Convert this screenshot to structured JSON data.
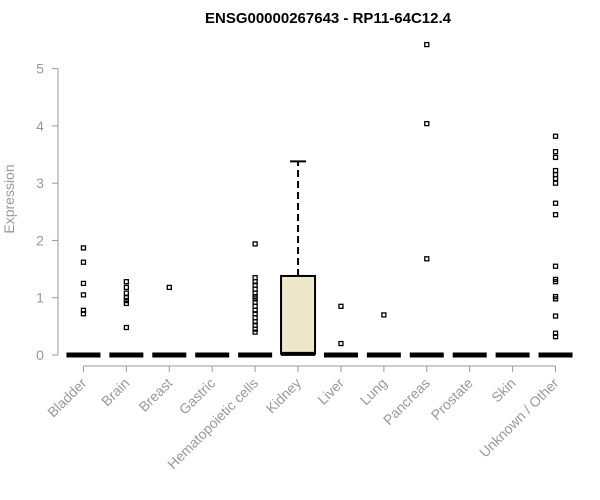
{
  "chart_data": {
    "type": "box",
    "title": "ENSG00000267643 - RP11-64C12.4",
    "xlabel": "",
    "ylabel": "Expression",
    "ylim": [
      0,
      5.5
    ],
    "yticks": [
      0,
      1,
      2,
      3,
      4,
      5
    ],
    "grid": false,
    "colors": {
      "box_fill": "#ede7cc",
      "box_stroke": "#000000",
      "axis": "#999999",
      "text": "#999999",
      "title": "#000000"
    },
    "categories": [
      "Bladder",
      "Brain",
      "Breast",
      "Gastric",
      "Hematopoietic cells",
      "Kidney",
      "Liver",
      "Lung",
      "Pancreas",
      "Prostate",
      "Skin",
      "Unknown / Other"
    ],
    "boxes": [
      {
        "category": "Bladder",
        "min": 0,
        "q1": 0,
        "median": 0,
        "q3": 0,
        "max": 0,
        "outliers": [
          1.87,
          1.62,
          1.25,
          1.05,
          0.78,
          0.72
        ]
      },
      {
        "category": "Brain",
        "min": 0,
        "q1": 0,
        "median": 0,
        "q3": 0,
        "max": 0,
        "outliers": [
          1.28,
          1.18,
          1.08,
          1.0,
          0.95,
          0.9,
          0.48
        ]
      },
      {
        "category": "Breast",
        "min": 0,
        "q1": 0,
        "median": 0,
        "q3": 0,
        "max": 0,
        "outliers": [
          1.18
        ]
      },
      {
        "category": "Gastric",
        "min": 0,
        "q1": 0,
        "median": 0,
        "q3": 0,
        "max": 0,
        "outliers": []
      },
      {
        "category": "Hematopoietic cells",
        "min": 0,
        "q1": 0,
        "median": 0,
        "q3": 0,
        "max": 0,
        "outliers": [
          1.94,
          1.35,
          1.28,
          1.22,
          1.15,
          1.08,
          1.02,
          0.98,
          0.92,
          0.85,
          0.78,
          0.72,
          0.65,
          0.58,
          0.52,
          0.45,
          0.4
        ]
      },
      {
        "category": "Kidney",
        "min": 0,
        "q1": 0.02,
        "median": 0.02,
        "q3": 1.38,
        "max": 3.38,
        "outliers": []
      },
      {
        "category": "Liver",
        "min": 0,
        "q1": 0,
        "median": 0,
        "q3": 0,
        "max": 0,
        "outliers": [
          0.85,
          0.2
        ]
      },
      {
        "category": "Lung",
        "min": 0,
        "q1": 0,
        "median": 0,
        "q3": 0,
        "max": 0,
        "outliers": [
          0.7
        ]
      },
      {
        "category": "Pancreas",
        "min": 0,
        "q1": 0,
        "median": 0,
        "q3": 0,
        "max": 0,
        "outliers": [
          5.42,
          4.04,
          1.68
        ]
      },
      {
        "category": "Prostate",
        "min": 0,
        "q1": 0,
        "median": 0,
        "q3": 0,
        "max": 0,
        "outliers": []
      },
      {
        "category": "Skin",
        "min": 0,
        "q1": 0,
        "median": 0,
        "q3": 0,
        "max": 0,
        "outliers": []
      },
      {
        "category": "Unknown / Other",
        "min": 0,
        "q1": 0,
        "median": 0,
        "q3": 0,
        "max": 0,
        "outliers": [
          3.82,
          3.55,
          3.45,
          3.22,
          3.15,
          3.08,
          3.0,
          2.65,
          2.45,
          1.55,
          1.32,
          1.28,
          1.02,
          0.98,
          0.68,
          0.38,
          0.32
        ]
      }
    ]
  }
}
